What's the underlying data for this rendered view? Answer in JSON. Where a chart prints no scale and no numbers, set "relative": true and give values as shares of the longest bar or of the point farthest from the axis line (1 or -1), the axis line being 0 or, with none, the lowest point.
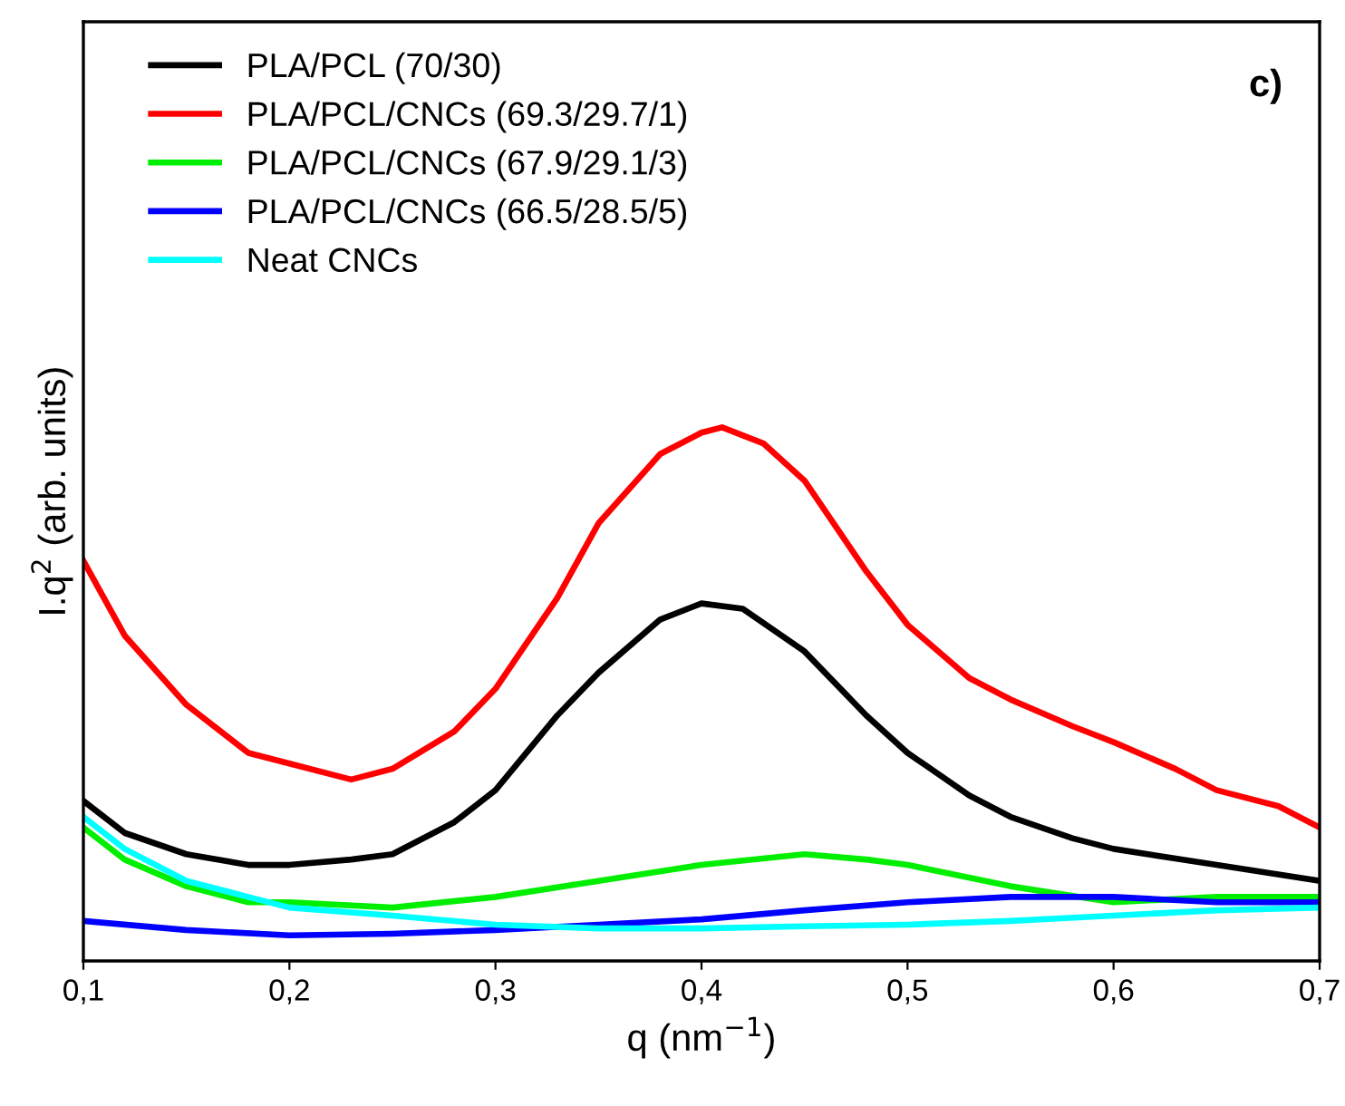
{
  "chart_data": {
    "type": "line",
    "relative": true,
    "xlabel": "q (nm$^{−1}$)",
    "ylabel": "I.q$^{2}$ (arb. units)",
    "annotations": [
      "c)"
    ],
    "legend": "top left",
    "grid": false,
    "x": [
      0.1,
      0.12,
      0.15,
      0.18,
      0.2,
      0.23,
      0.25,
      0.28,
      0.3,
      0.33,
      0.35,
      0.38,
      0.4,
      0.41,
      0.43,
      0.45,
      0.48,
      0.5,
      0.53,
      0.55,
      0.58,
      0.6,
      0.63,
      0.65,
      0.68,
      0.7
    ],
    "xlim": [
      0.1,
      0.7
    ],
    "xticks": [
      {
        "value": 0.1,
        "label": "0,1"
      },
      {
        "value": 0.2,
        "label": "0,2"
      },
      {
        "value": 0.3,
        "label": "0,3"
      },
      {
        "value": 0.4,
        "label": "0,4"
      },
      {
        "value": 0.5,
        "label": "0,5"
      },
      {
        "value": 0.6,
        "label": "0,6"
      },
      {
        "value": 0.7,
        "label": "0,7"
      }
    ],
    "series": [
      {
        "name": "PLA/PCL (70/30)",
        "color": "#000000",
        "x": [
          0.1,
          0.12,
          0.15,
          0.18,
          0.2,
          0.23,
          0.25,
          0.28,
          0.3,
          0.33,
          0.35,
          0.38,
          0.4,
          0.42,
          0.45,
          0.48,
          0.5,
          0.53,
          0.55,
          0.58,
          0.6,
          0.65,
          0.7
        ],
        "values": [
          0.3,
          0.24,
          0.2,
          0.18,
          0.18,
          0.19,
          0.2,
          0.26,
          0.32,
          0.46,
          0.54,
          0.64,
          0.67,
          0.66,
          0.58,
          0.46,
          0.39,
          0.31,
          0.27,
          0.23,
          0.21,
          0.18,
          0.15
        ]
      },
      {
        "name": "PLA/PCL/CNCs (69.3/29.7/1)",
        "color": "#ff0000",
        "values": [
          0.75,
          0.61,
          0.48,
          0.39,
          0.37,
          0.34,
          0.36,
          0.43,
          0.51,
          0.68,
          0.82,
          0.95,
          0.99,
          1.0,
          0.97,
          0.9,
          0.73,
          0.63,
          0.53,
          0.49,
          0.44,
          0.41,
          0.36,
          0.32,
          0.29,
          0.25
        ]
      },
      {
        "name": "PLA/PCL/CNCs (67.9/29.1/3)",
        "color": "#00ee00",
        "x": [
          0.1,
          0.12,
          0.15,
          0.18,
          0.2,
          0.25,
          0.3,
          0.35,
          0.4,
          0.45,
          0.48,
          0.5,
          0.55,
          0.6,
          0.65,
          0.7
        ],
        "values": [
          0.25,
          0.19,
          0.14,
          0.11,
          0.11,
          0.1,
          0.12,
          0.15,
          0.18,
          0.2,
          0.19,
          0.18,
          0.14,
          0.11,
          0.12,
          0.12
        ]
      },
      {
        "name": "PLA/PCL/CNCs (66.5/28.5/5)",
        "color": "#0000ff",
        "x": [
          0.1,
          0.15,
          0.2,
          0.25,
          0.3,
          0.35,
          0.4,
          0.45,
          0.5,
          0.55,
          0.6,
          0.65,
          0.7
        ],
        "values": [
          0.075,
          0.058,
          0.048,
          0.051,
          0.058,
          0.068,
          0.078,
          0.095,
          0.11,
          0.12,
          0.12,
          0.11,
          0.11
        ]
      },
      {
        "name": "Neat CNCs",
        "color": "#00ffff",
        "x": [
          0.1,
          0.12,
          0.15,
          0.18,
          0.2,
          0.25,
          0.3,
          0.35,
          0.4,
          0.45,
          0.5,
          0.55,
          0.6,
          0.65,
          0.7
        ],
        "values": [
          0.27,
          0.21,
          0.15,
          0.12,
          0.1,
          0.085,
          0.068,
          0.061,
          0.061,
          0.065,
          0.068,
          0.075,
          0.085,
          0.095,
          0.1
        ]
      }
    ]
  }
}
